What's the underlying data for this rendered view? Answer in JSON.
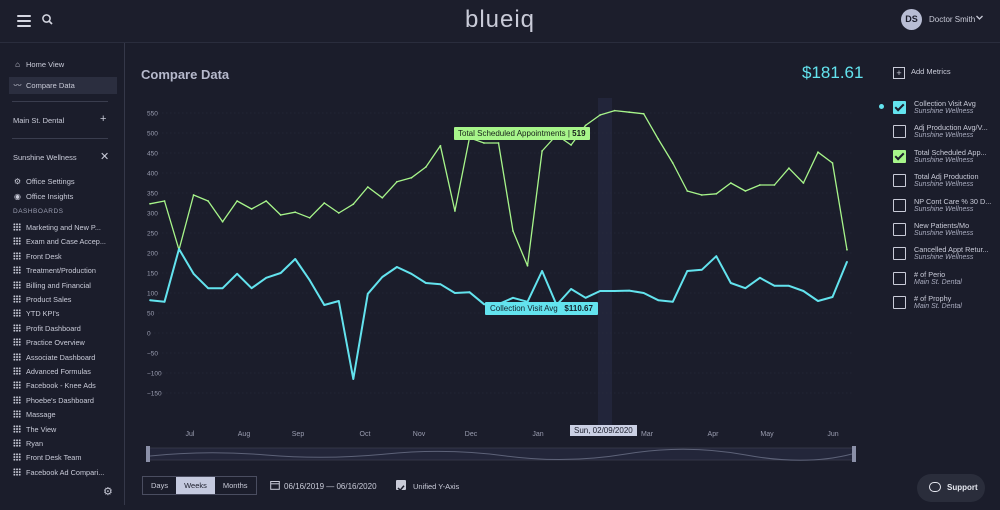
{
  "header": {
    "logo": "blueiq",
    "user_initials": "DS",
    "user_name": "Doctor Smith"
  },
  "sidebar": {
    "home_label": "Home View",
    "compare_label": "Compare Data",
    "main_office": "Main St. Dental",
    "active_office": "Sunshine Wellness",
    "office_settings": "Office Settings",
    "office_insights": "Office Insights",
    "dashboards_heading": "DASHBOARDS",
    "dashboards": [
      "Marketing and New P...",
      "Exam and Case Accep...",
      "Front Desk",
      "Treatment/Production",
      "Billing and Financial",
      "Product Sales",
      "YTD KPI's",
      "Profit Dashboard",
      "Practice Overview",
      "Associate Dashboard",
      "Advanced Formulas",
      "Facebook - Knee Ads",
      "Phoebe's Dashboard",
      "Massage",
      "The View",
      "Ryan",
      "Front Desk Team",
      "Facebook Ad Compari..."
    ]
  },
  "main": {
    "title": "Compare Data",
    "total_value": "$181.61",
    "tooltip_green_label": "Total Scheduled Appointments",
    "tooltip_green_value": "519",
    "tooltip_cyan_label": "Collection Visit Avg",
    "tooltip_cyan_value": "$110.67",
    "hover_date": "Sun, 02/09/2020"
  },
  "controls": {
    "granularity": [
      "Days",
      "Weeks",
      "Months"
    ],
    "granularity_selected": "Weeks",
    "date_range": "06/16/2019 — 06/16/2020",
    "unified_label": "Unified Y-Axis",
    "unified_checked": true
  },
  "metrics_panel": {
    "add_label": "Add Metrics",
    "items": [
      {
        "name": "Collection Visit Avg",
        "office": "Sunshine Wellness",
        "checked": "cyan"
      },
      {
        "name": "Adj Production Avg/V...",
        "office": "Sunshine Wellness",
        "checked": ""
      },
      {
        "name": "Total Scheduled App...",
        "office": "Sunshine Wellness",
        "checked": "green"
      },
      {
        "name": "Total Adj Production",
        "office": "Sunshine Wellness",
        "checked": ""
      },
      {
        "name": "NP Cont Care % 30 D...",
        "office": "Sunshine Wellness",
        "checked": ""
      },
      {
        "name": "New Patients/Mo",
        "office": "Sunshine Wellness",
        "checked": ""
      },
      {
        "name": "Cancelled Appt Retur...",
        "office": "Sunshine Wellness",
        "checked": ""
      },
      {
        "name": "# of Perio",
        "office": "Main St. Dental",
        "checked": ""
      },
      {
        "name": "# of Prophy",
        "office": "Main St. Dental",
        "checked": ""
      }
    ]
  },
  "support_label": "Support",
  "colors": {
    "cyan": "#63e3ee",
    "green": "#a7f58a",
    "background": "#1b1d2b"
  },
  "chart_data": {
    "type": "line",
    "y_ticks": [
      "550",
      "500",
      "450",
      "400",
      "350",
      "300",
      "250",
      "200",
      "150",
      "100",
      "50",
      "0",
      "−50",
      "−100",
      "−150"
    ],
    "ylim": [
      -150,
      550
    ],
    "x_ticks": [
      "Jul",
      "Aug",
      "Sep",
      "Oct",
      "Nov",
      "Dec",
      "Jan",
      "Mar",
      "Apr",
      "May",
      "Jun"
    ],
    "series": [
      {
        "name": "Total Scheduled Appointments",
        "color": "#a7f58a",
        "values": [
          323,
          330,
          208,
          345,
          330,
          278,
          330,
          310,
          330,
          295,
          302,
          288,
          325,
          300,
          322,
          365,
          338,
          378,
          388,
          415,
          468,
          305,
          488,
          475,
          475,
          255,
          168,
          455,
          495,
          470,
          519,
          545,
          556,
          552,
          548,
          485,
          425,
          355,
          345,
          348,
          375,
          355,
          370,
          370,
          412,
          375,
          452,
          425,
          208
        ]
      },
      {
        "name": "Collection Visit Avg",
        "color": "#63e3ee",
        "values": [
          82,
          78,
          210,
          148,
          112,
          112,
          148,
          112,
          138,
          150,
          185,
          132,
          70,
          80,
          -115,
          98,
          140,
          165,
          148,
          125,
          122,
          100,
          102,
          72,
          72,
          88,
          78,
          155,
          70,
          110,
          88,
          105,
          105,
          106,
          100,
          82,
          78,
          155,
          158,
          192,
          125,
          112,
          138,
          118,
          118,
          105,
          80,
          90,
          178
        ]
      }
    ]
  }
}
